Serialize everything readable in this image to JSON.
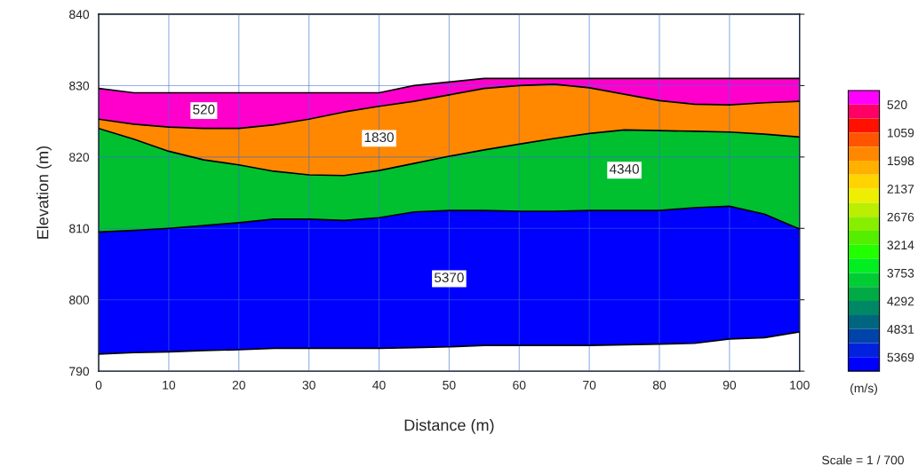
{
  "chart_data": {
    "type": "area",
    "xlabel": "Distance (m)",
    "ylabel": "Elevation (m)",
    "clabel": "(m/s)",
    "x": [
      0,
      5,
      10,
      15,
      20,
      25,
      30,
      35,
      40,
      45,
      50,
      55,
      60,
      65,
      70,
      75,
      80,
      85,
      90,
      95,
      100
    ],
    "series": [
      {
        "name": "520",
        "color": "#ff00cc",
        "values": [
          829.6,
          829.0,
          829.0,
          829.0,
          829.0,
          829.0,
          829.0,
          829.0,
          829.0,
          830.0,
          830.5,
          831.0,
          831.0,
          831.0,
          831.0,
          831.0,
          831.0,
          831.0,
          831.0,
          831.0,
          831.0
        ]
      },
      {
        "name": "1830",
        "color": "#ff8800",
        "values": [
          825.3,
          824.6,
          824.2,
          824.0,
          824.0,
          824.5,
          825.3,
          826.3,
          827.1,
          827.8,
          828.7,
          829.6,
          830.0,
          830.2,
          829.7,
          828.8,
          827.9,
          827.4,
          827.3,
          827.6,
          827.8
        ]
      },
      {
        "name": "4340",
        "color": "#00c030",
        "values": [
          824.0,
          822.5,
          820.8,
          819.6,
          818.9,
          818.0,
          817.5,
          817.4,
          818.1,
          819.1,
          820.1,
          821.0,
          821.8,
          822.6,
          823.3,
          823.8,
          823.7,
          823.6,
          823.5,
          823.2,
          822.8
        ]
      },
      {
        "name": "5370",
        "color": "#0000ff",
        "values": [
          809.5,
          809.7,
          810.0,
          810.4,
          810.8,
          811.3,
          811.3,
          811.1,
          811.5,
          812.3,
          812.5,
          812.5,
          812.4,
          812.4,
          812.5,
          812.5,
          812.5,
          812.9,
          813.1,
          812.0,
          809.9
        ]
      },
      {
        "color": "#ffffff",
        "values": [
          792.4,
          792.6,
          792.7,
          792.9,
          793.0,
          793.2,
          793.2,
          793.2,
          793.2,
          793.3,
          793.4,
          793.6,
          793.6,
          793.6,
          793.6,
          793.7,
          793.8,
          793.9,
          794.5,
          794.7,
          795.5
        ]
      }
    ],
    "xlim": [
      0,
      100
    ],
    "xticks": [
      0,
      10,
      20,
      30,
      40,
      50,
      60,
      70,
      80,
      90,
      100
    ],
    "ylim": [
      790,
      840
    ],
    "yticks": [
      790,
      800,
      810,
      820,
      830,
      840
    ],
    "grid": true,
    "clim": [
      5638,
      251
    ],
    "cticks": [
      520,
      1059,
      1598,
      2137,
      2676,
      3214,
      3753,
      4292,
      4831,
      5369
    ],
    "annotations": [
      "Scale = 1 / 700"
    ]
  }
}
